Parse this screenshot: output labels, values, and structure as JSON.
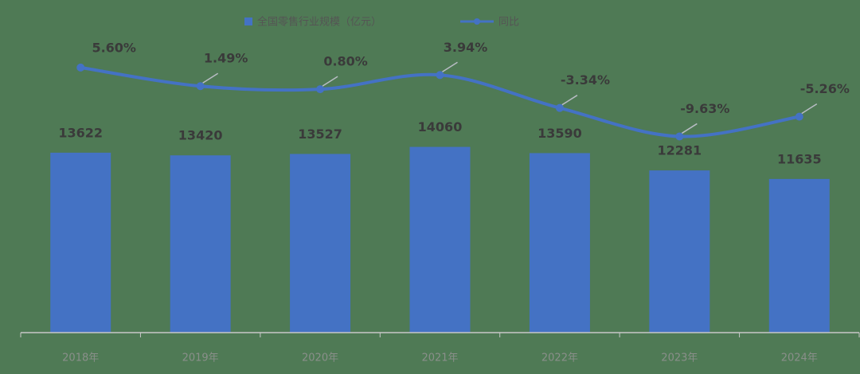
{
  "chart_data": {
    "type": "bar-line",
    "categories": [
      "2018年",
      "2019年",
      "2020年",
      "2021年",
      "2022年",
      "2023年",
      "2024年"
    ],
    "ylim": [
      0,
      25000
    ],
    "y2lim": [
      -53,
      20
    ],
    "series": [
      {
        "name": "全国零售行业规模（亿元）",
        "color": "#4472c4",
        "type": "bar",
        "values": [
          13622,
          13420,
          13527,
          14060,
          13590,
          12281,
          11635
        ]
      },
      {
        "name": "同比",
        "color": "#4472c4",
        "type": "line",
        "axis": "y2",
        "values": [
          5.6,
          1.49,
          0.8,
          3.94,
          -3.34,
          -9.63,
          -5.26
        ],
        "value_labels": [
          "5.60%",
          "1.49%",
          "0.80%",
          "3.94%",
          "-3.34%",
          "-9.63%",
          "-5.26%"
        ]
      }
    ]
  }
}
